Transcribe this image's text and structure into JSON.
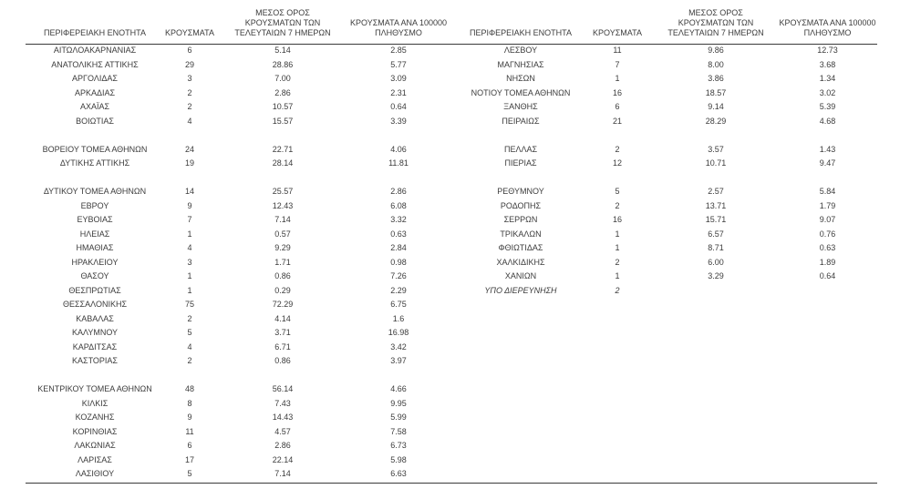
{
  "page": {
    "background": "#ffffff",
    "text_color": "#3c3c3c",
    "rule_color": "#3a3a3a"
  },
  "columns": {
    "region_label": "ΠΕΡΙΦΕΡΕΙΑΚΗ ΕΝΟΤΗΤΑ",
    "cases_label": "ΚΡΟΥΣΜΑΤΑ",
    "avg7_lines": [
      "ΜΕΣΟΣ ΟΡΟΣ",
      "ΚΡΟΥΣΜΑΤΩΝ ΤΩΝ",
      "ΤΕΛΕΥΤΑΙΩΝ 7 ΗΜΕΡΩΝ"
    ],
    "per100k_lines": [
      "ΚΡΟΥΣΜΑΤΑ ΑΝΑ 100000",
      "ΠΛΗΘΥΣΜΟ"
    ]
  },
  "tables": [
    {
      "name": "left",
      "rows": [
        {
          "region": "ΑΙΤΩΛΟΑΚΑΡΝΑΝΙΑΣ",
          "cases": "6",
          "avg7": "5.14",
          "per100k": "2.85"
        },
        {
          "region": "ΑΝΑΤΟΛΙΚΗΣ ΑΤΤΙΚΗΣ",
          "cases": "29",
          "avg7": "28.86",
          "per100k": "5.77"
        },
        {
          "region": "ΑΡΓΟΛΙΔΑΣ",
          "cases": "3",
          "avg7": "7.00",
          "per100k": "3.09"
        },
        {
          "region": "ΑΡΚΑΔΙΑΣ",
          "cases": "2",
          "avg7": "2.86",
          "per100k": "2.31"
        },
        {
          "region": "ΑΧΑΪΑΣ",
          "cases": "2",
          "avg7": "10.57",
          "per100k": "0.64"
        },
        {
          "region": "ΒΟΙΩΤΙΑΣ",
          "cases": "4",
          "avg7": "15.57",
          "per100k": "3.39"
        },
        {
          "spacer": true
        },
        {
          "region": "ΒΟΡΕΙΟΥ ΤΟΜΕΑ ΑΘΗΝΩΝ",
          "cases": "24",
          "avg7": "22.71",
          "per100k": "4.06"
        },
        {
          "region": "ΔΥΤΙΚΗΣ ΑΤΤΙΚΗΣ",
          "cases": "19",
          "avg7": "28.14",
          "per100k": "11.81"
        },
        {
          "spacer": true
        },
        {
          "region": "ΔΥΤΙΚΟΥ ΤΟΜΕΑ ΑΘΗΝΩΝ",
          "cases": "14",
          "avg7": "25.57",
          "per100k": "2.86"
        },
        {
          "region": "ΕΒΡΟΥ",
          "cases": "9",
          "avg7": "12.43",
          "per100k": "6.08"
        },
        {
          "region": "ΕΥΒΟΙΑΣ",
          "cases": "7",
          "avg7": "7.14",
          "per100k": "3.32"
        },
        {
          "region": "ΗΛΕΙΑΣ",
          "cases": "1",
          "avg7": "0.57",
          "per100k": "0.63"
        },
        {
          "region": "ΗΜΑΘΙΑΣ",
          "cases": "4",
          "avg7": "9.29",
          "per100k": "2.84"
        },
        {
          "region": "ΗΡΑΚΛΕΙΟΥ",
          "cases": "3",
          "avg7": "1.71",
          "per100k": "0.98"
        },
        {
          "region": "ΘΑΣΟΥ",
          "cases": "1",
          "avg7": "0.86",
          "per100k": "7.26"
        },
        {
          "region": "ΘΕΣΠΡΩΤΙΑΣ",
          "cases": "1",
          "avg7": "0.29",
          "per100k": "2.29"
        },
        {
          "region": "ΘΕΣΣΑΛΟΝΙΚΗΣ",
          "cases": "75",
          "avg7": "72.29",
          "per100k": "6.75"
        },
        {
          "region": "ΚΑΒΑΛΑΣ",
          "cases": "2",
          "avg7": "4.14",
          "per100k": "1.6"
        },
        {
          "region": "ΚΑΛΥΜΝΟΥ",
          "cases": "5",
          "avg7": "3.71",
          "per100k": "16.98"
        },
        {
          "region": "ΚΑΡΔΙΤΣΑΣ",
          "cases": "4",
          "avg7": "6.71",
          "per100k": "3.42"
        },
        {
          "region": "ΚΑΣΤΟΡΙΑΣ",
          "cases": "2",
          "avg7": "0.86",
          "per100k": "3.97"
        },
        {
          "spacer": true
        },
        {
          "region": "ΚΕΝΤΡΙΚΟΥ ΤΟΜΕΑ ΑΘΗΝΩΝ",
          "cases": "48",
          "avg7": "56.14",
          "per100k": "4.66"
        },
        {
          "region": "ΚΙΛΚΙΣ",
          "cases": "8",
          "avg7": "7.43",
          "per100k": "9.95"
        },
        {
          "region": "ΚΟΖΑΝΗΣ",
          "cases": "9",
          "avg7": "14.43",
          "per100k": "5.99"
        },
        {
          "region": "ΚΟΡΙΝΘΙΑΣ",
          "cases": "11",
          "avg7": "4.57",
          "per100k": "7.58"
        },
        {
          "region": "ΛΑΚΩΝΙΑΣ",
          "cases": "6",
          "avg7": "2.86",
          "per100k": "6.73"
        },
        {
          "region": "ΛΑΡΙΣΑΣ",
          "cases": "17",
          "avg7": "22.14",
          "per100k": "5.98"
        },
        {
          "region": "ΛΑΣΙΘΙΟΥ",
          "cases": "5",
          "avg7": "7.14",
          "per100k": "6.63"
        }
      ]
    },
    {
      "name": "right",
      "rows": [
        {
          "region": "ΛΕΣΒΟΥ",
          "cases": "11",
          "avg7": "9.86",
          "per100k": "12.73"
        },
        {
          "region": "ΜΑΓΝΗΣΙΑΣ",
          "cases": "7",
          "avg7": "8.00",
          "per100k": "3.68"
        },
        {
          "region": "ΝΗΣΩΝ",
          "cases": "1",
          "avg7": "3.86",
          "per100k": "1.34"
        },
        {
          "region": "ΝΟΤΙΟΥ ΤΟΜΕΑ ΑΘΗΝΩΝ",
          "cases": "16",
          "avg7": "18.57",
          "per100k": "3.02"
        },
        {
          "region": "ΞΑΝΘΗΣ",
          "cases": "6",
          "avg7": "9.14",
          "per100k": "5.39"
        },
        {
          "region": "ΠΕΙΡΑΙΩΣ",
          "cases": "21",
          "avg7": "28.29",
          "per100k": "4.68"
        },
        {
          "spacer": true
        },
        {
          "region": "ΠΕΛΛΑΣ",
          "cases": "2",
          "avg7": "3.57",
          "per100k": "1.43"
        },
        {
          "region": "ΠΙΕΡΙΑΣ",
          "cases": "12",
          "avg7": "10.71",
          "per100k": "9.47"
        },
        {
          "spacer": true
        },
        {
          "region": "ΡΕΘΥΜΝΟΥ",
          "cases": "5",
          "avg7": "2.57",
          "per100k": "5.84"
        },
        {
          "region": "ΡΟΔΟΠΗΣ",
          "cases": "2",
          "avg7": "13.71",
          "per100k": "1.79"
        },
        {
          "region": "ΣΕΡΡΩΝ",
          "cases": "16",
          "avg7": "15.71",
          "per100k": "9.07"
        },
        {
          "region": "ΤΡΙΚΑΛΩΝ",
          "cases": "1",
          "avg7": "6.57",
          "per100k": "0.76"
        },
        {
          "region": "ΦΘΙΩΤΙΔΑΣ",
          "cases": "1",
          "avg7": "8.71",
          "per100k": "0.63"
        },
        {
          "region": "ΧΑΛΚΙΔΙΚΗΣ",
          "cases": "2",
          "avg7": "6.00",
          "per100k": "1.89"
        },
        {
          "region": "ΧΑΝΙΩΝ",
          "cases": "1",
          "avg7": "3.29",
          "per100k": "0.64"
        },
        {
          "region": "ΥΠΟ ΔΙΕΡΕΥΝΗΣΗ",
          "cases": "2",
          "avg7": "",
          "per100k": "",
          "italic": true
        }
      ]
    }
  ]
}
